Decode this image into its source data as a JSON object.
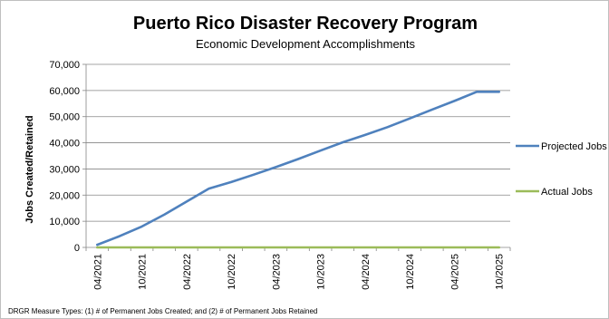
{
  "chart_data": {
    "type": "line",
    "title": "Puerto Rico Disaster Recovery Program",
    "subtitle": "Economic Development Accomplishments",
    "ylabel": "Jobs Created/Retained",
    "xlabel": "",
    "ylim": [
      0,
      70000
    ],
    "yticks": [
      0,
      10000,
      20000,
      30000,
      40000,
      50000,
      60000,
      70000
    ],
    "ytick_labels": [
      "0",
      "10,000",
      "20,000",
      "30,000",
      "40,000",
      "50,000",
      "60,000",
      "70,000"
    ],
    "x": [
      "04/2021",
      "07/2021",
      "10/2021",
      "01/2022",
      "04/2022",
      "07/2022",
      "10/2022",
      "01/2023",
      "04/2023",
      "07/2023",
      "10/2023",
      "01/2024",
      "04/2024",
      "07/2024",
      "10/2024",
      "01/2025",
      "04/2025",
      "07/2025",
      "10/2025"
    ],
    "x_tick_labels": [
      "04/2021",
      "10/2021",
      "04/2022",
      "10/2022",
      "04/2023",
      "10/2023",
      "04/2024",
      "10/2024",
      "04/2025",
      "10/2025"
    ],
    "grid": "horizontal",
    "legend_placement": "right",
    "series": [
      {
        "name": "Projected Jobs",
        "color": "#4f81bd",
        "values": [
          1000,
          4300,
          8000,
          12500,
          17500,
          22500,
          25000,
          27800,
          30700,
          33800,
          37000,
          40200,
          43000,
          46000,
          49300,
          52700,
          56000,
          59500,
          59500
        ]
      },
      {
        "name": "Actual Jobs",
        "color": "#9bbb59",
        "values": [
          0,
          0,
          0,
          0,
          0,
          0,
          0,
          0,
          0,
          0,
          0,
          0,
          0,
          0,
          0,
          0,
          0,
          0,
          0
        ]
      }
    ],
    "footnote": "DRGR Measure Types: (1) # of Permanent Jobs Created; and (2) # of Permanent Jobs Retained"
  }
}
